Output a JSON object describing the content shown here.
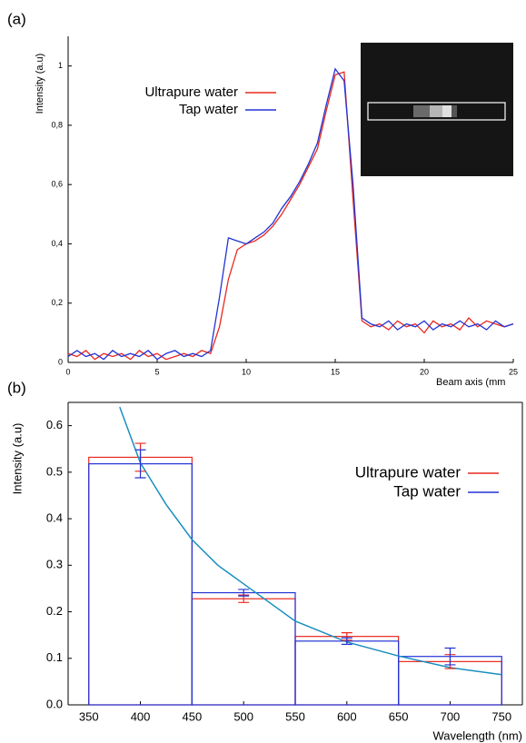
{
  "chart_data": [
    {
      "type": "line",
      "panel_label": "(a)",
      "x_label": "Beam axis (mm",
      "y_label": "Intensity (a.u)",
      "x": [
        0,
        0.5,
        1,
        1.5,
        2,
        2.5,
        3,
        3.5,
        4,
        4.5,
        5,
        5.5,
        6,
        6.5,
        7,
        7.5,
        8,
        8.5,
        9,
        9.5,
        10,
        10.5,
        11,
        11.5,
        12,
        12.5,
        13,
        13.5,
        14,
        14.5,
        15,
        15.5,
        16,
        16.5,
        17,
        17.5,
        18,
        18.5,
        19,
        19.5,
        20,
        20.5,
        21,
        21.5,
        22,
        22.5,
        23,
        23.5,
        24,
        24.5,
        25
      ],
      "series": [
        {
          "name": "Ultrapure water",
          "color": "#e8281e",
          "values": [
            0.03,
            0.02,
            0.04,
            0.01,
            0.03,
            0.02,
            0.03,
            0.01,
            0.04,
            0.02,
            0.03,
            0.01,
            0.02,
            0.03,
            0.02,
            0.04,
            0.03,
            0.12,
            0.28,
            0.38,
            0.4,
            0.41,
            0.43,
            0.46,
            0.5,
            0.55,
            0.6,
            0.66,
            0.72,
            0.85,
            0.97,
            0.98,
            0.55,
            0.14,
            0.12,
            0.13,
            0.11,
            0.14,
            0.12,
            0.13,
            0.1,
            0.14,
            0.12,
            0.13,
            0.11,
            0.15,
            0.12,
            0.14,
            0.13,
            0.12,
            0.13
          ]
        },
        {
          "name": "Tap water",
          "color": "#2233d6",
          "values": [
            0.02,
            0.04,
            0.02,
            0.03,
            0.01,
            0.04,
            0.02,
            0.03,
            0.02,
            0.04,
            0.01,
            0.03,
            0.04,
            0.02,
            0.03,
            0.02,
            0.04,
            0.22,
            0.42,
            0.41,
            0.4,
            0.42,
            0.44,
            0.47,
            0.52,
            0.56,
            0.61,
            0.67,
            0.74,
            0.87,
            0.99,
            0.95,
            0.6,
            0.15,
            0.13,
            0.12,
            0.14,
            0.11,
            0.13,
            0.12,
            0.14,
            0.11,
            0.13,
            0.12,
            0.14,
            0.12,
            0.13,
            0.11,
            0.14,
            0.12,
            0.13
          ]
        }
      ],
      "xlim": [
        0,
        25
      ],
      "xticks": [
        0,
        5,
        10,
        15,
        20,
        25
      ],
      "ylim": [
        0,
        1.1
      ],
      "yticks": [
        0,
        {
          "value": 0.2,
          "label": "0,2"
        },
        {
          "value": 0.4,
          "label": "0,4"
        },
        {
          "value": 0.6,
          "label": "0,6"
        },
        {
          "value": 0.8,
          "label": "0,8"
        },
        1
      ],
      "legend": "upper left"
    },
    {
      "type": "histogram",
      "panel_label": "(b)",
      "x_label": "Wavelength (nm)",
      "y_label": "Intensity (a.u)",
      "bins": [
        350,
        450,
        550,
        650,
        750
      ],
      "series": [
        {
          "name": "Ultrapure water",
          "color": "#e8281e",
          "values": [
            0.532,
            0.228,
            0.147,
            0.093
          ],
          "errors": [
            0.03,
            0.008,
            0.008,
            0.015
          ]
        },
        {
          "name": "Tap water",
          "color": "#2233d6",
          "values": [
            0.518,
            0.241,
            0.137,
            0.104
          ],
          "errors": [
            0.03,
            0.007,
            0.007,
            0.018
          ]
        }
      ],
      "fit": {
        "color": "#1a8fbf",
        "x": [
          380,
          400,
          425,
          450,
          475,
          500,
          550,
          600,
          650,
          700,
          750
        ],
        "values": [
          0.64,
          0.52,
          0.43,
          0.355,
          0.3,
          0.26,
          0.18,
          0.135,
          0.105,
          0.08,
          0.065
        ]
      },
      "xlim": [
        330,
        770
      ],
      "xticks": [
        350,
        400,
        450,
        500,
        550,
        600,
        650,
        700,
        750
      ],
      "ylim": [
        0,
        0.65
      ],
      "yticks": [
        {
          "value": 0,
          "label": "0.0"
        },
        0.1,
        0.2,
        0.3,
        0.4,
        0.5,
        0.6
      ],
      "legend": "upper right"
    }
  ]
}
